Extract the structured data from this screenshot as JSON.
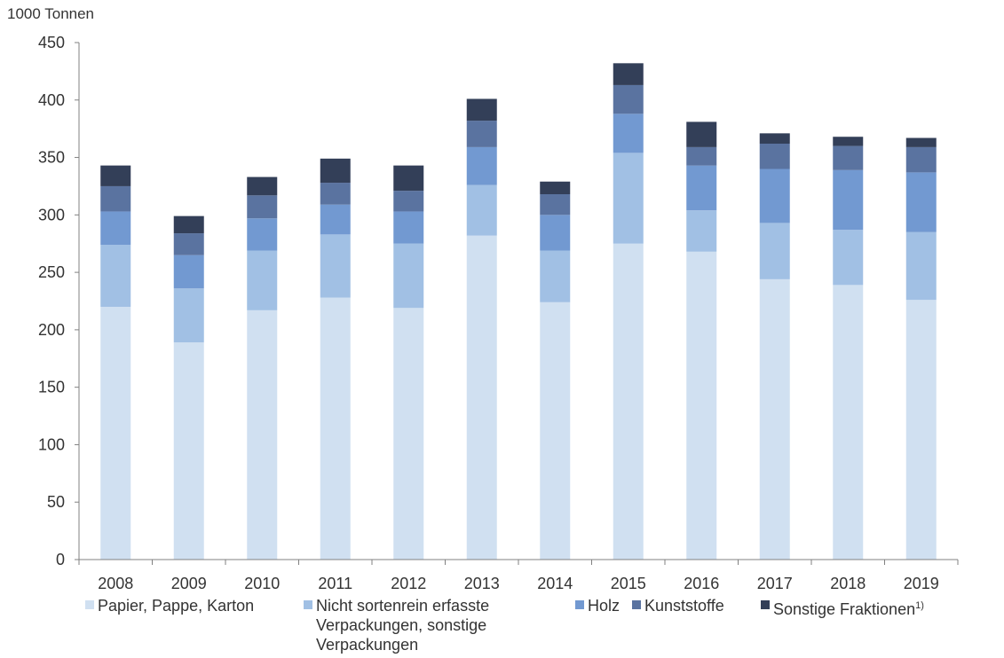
{
  "chart_data": {
    "type": "bar",
    "stacked": true,
    "ylabel": "1000 Tonnen",
    "ylim": [
      0,
      450
    ],
    "yticks": [
      0,
      50,
      100,
      150,
      200,
      250,
      300,
      350,
      400,
      450
    ],
    "categories": [
      "2008",
      "2009",
      "2010",
      "2011",
      "2012",
      "2013",
      "2014",
      "2015",
      "2016",
      "2017",
      "2018",
      "2019"
    ],
    "series": [
      {
        "name": "Papier, Pappe, Karton",
        "color": "#d0e0f1",
        "values": [
          220,
          189,
          217,
          228,
          219,
          282,
          224,
          275,
          268,
          244,
          239,
          226
        ]
      },
      {
        "name": "Nicht sortenrein erfasste\nVerpackungen, sonstige\nVerpackungen",
        "color": "#a1c0e4",
        "values": [
          54,
          47,
          52,
          55,
          56,
          44,
          45,
          79,
          36,
          49,
          48,
          59
        ]
      },
      {
        "name": "Holz",
        "color": "#7299d1",
        "values": [
          29,
          29,
          28,
          26,
          28,
          33,
          31,
          34,
          39,
          47,
          52,
          52
        ]
      },
      {
        "name": "Kunststoffe",
        "color": "#5a73a0",
        "values": [
          22,
          19,
          20,
          19,
          18,
          23,
          18,
          25,
          16,
          22,
          21,
          22
        ]
      },
      {
        "name": "Sonstige Fraktionen",
        "color": "#333f58",
        "values": [
          18,
          15,
          16,
          21,
          22,
          19,
          11,
          19,
          22,
          9,
          8,
          8
        ]
      }
    ],
    "legend_position": "bottom",
    "grid": false
  },
  "legend_footnote": "1)"
}
